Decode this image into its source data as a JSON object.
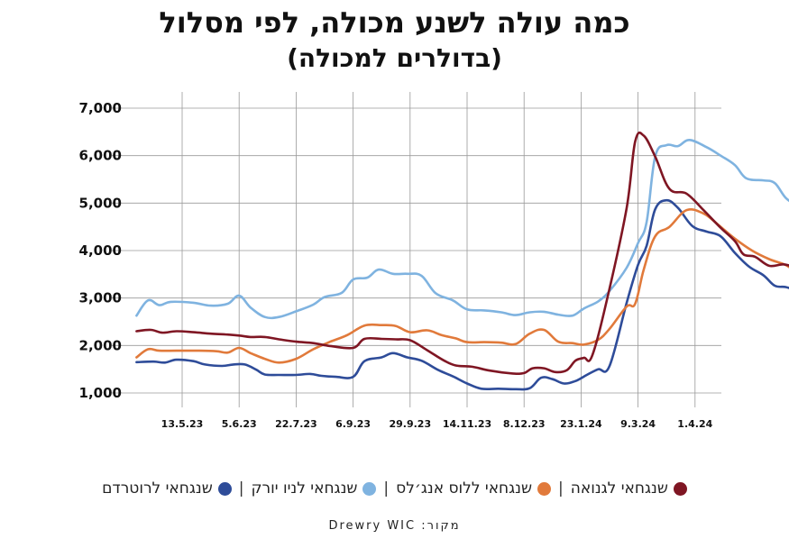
{
  "chart_data": {
    "type": "line",
    "title": "כמה עולה לשנע מכולה, לפי מסלול",
    "subtitle": "(בדולרים למכולה)",
    "x": [
      "13.5.23",
      "5.6.23",
      "22.7.23",
      "6.9.23",
      "29.9.23",
      "14.11.23",
      "8.12.23",
      "23.1.24",
      "9.3.24",
      "1.4.24"
    ],
    "y_ticks": [
      "1,000",
      "2,000",
      "3,000",
      "4,000",
      "5,000",
      "6,000",
      "7,000"
    ],
    "ylim": [
      1000,
      7000
    ],
    "grid": true,
    "legend_position": "bottom",
    "series": [
      {
        "name": "שנגחאי לגנואה",
        "color": "#7f1623",
        "values": [
          [
            -0.8,
            2300
          ],
          [
            -0.55,
            2330
          ],
          [
            -0.35,
            2270
          ],
          [
            -0.1,
            2300
          ],
          [
            0.2,
            2280
          ],
          [
            0.5,
            2250
          ],
          [
            0.8,
            2230
          ],
          [
            1.0,
            2210
          ],
          [
            1.2,
            2180
          ],
          [
            1.45,
            2180
          ],
          [
            1.7,
            2130
          ],
          [
            2.0,
            2080
          ],
          [
            2.3,
            2050
          ],
          [
            2.6,
            1990
          ],
          [
            3.0,
            1950
          ],
          [
            3.2,
            2140
          ],
          [
            3.5,
            2140
          ],
          [
            3.75,
            2130
          ],
          [
            4.0,
            2110
          ],
          [
            4.3,
            1900
          ],
          [
            4.6,
            1680
          ],
          [
            4.8,
            1580
          ],
          [
            5.1,
            1550
          ],
          [
            5.4,
            1470
          ],
          [
            5.8,
            1410
          ],
          [
            6.0,
            1420
          ],
          [
            6.15,
            1520
          ],
          [
            6.35,
            1520
          ],
          [
            6.55,
            1440
          ],
          [
            6.75,
            1480
          ],
          [
            6.9,
            1680
          ],
          [
            7.05,
            1740
          ],
          [
            7.2,
            1800
          ],
          [
            7.5,
            3200
          ],
          [
            7.8,
            4900
          ],
          [
            7.95,
            6300
          ],
          [
            8.1,
            6420
          ],
          [
            8.3,
            5980
          ],
          [
            8.55,
            5300
          ],
          [
            8.85,
            5200
          ],
          [
            9.15,
            4850
          ],
          [
            9.45,
            4480
          ],
          [
            9.7,
            4200
          ],
          [
            9.85,
            3920
          ],
          [
            10.05,
            3870
          ],
          [
            10.3,
            3680
          ],
          [
            10.55,
            3710
          ],
          [
            10.75,
            3650
          ]
        ]
      },
      {
        "name": "שנגחאי ללוס אנג'לס",
        "color": "#e17a3b",
        "values": [
          [
            -0.8,
            1750
          ],
          [
            -0.6,
            1920
          ],
          [
            -0.4,
            1890
          ],
          [
            -0.1,
            1890
          ],
          [
            0.3,
            1890
          ],
          [
            0.6,
            1880
          ],
          [
            0.8,
            1850
          ],
          [
            1.0,
            1950
          ],
          [
            1.2,
            1840
          ],
          [
            1.45,
            1720
          ],
          [
            1.7,
            1640
          ],
          [
            2.0,
            1720
          ],
          [
            2.3,
            1920
          ],
          [
            2.6,
            2080
          ],
          [
            2.9,
            2220
          ],
          [
            3.2,
            2420
          ],
          [
            3.5,
            2430
          ],
          [
            3.75,
            2410
          ],
          [
            4.0,
            2280
          ],
          [
            4.3,
            2320
          ],
          [
            4.55,
            2220
          ],
          [
            4.8,
            2150
          ],
          [
            5.0,
            2070
          ],
          [
            5.3,
            2070
          ],
          [
            5.6,
            2060
          ],
          [
            5.85,
            2030
          ],
          [
            6.1,
            2250
          ],
          [
            6.35,
            2330
          ],
          [
            6.6,
            2080
          ],
          [
            6.85,
            2050
          ],
          [
            7.05,
            2020
          ],
          [
            7.3,
            2120
          ],
          [
            7.5,
            2350
          ],
          [
            7.8,
            2820
          ],
          [
            7.95,
            2880
          ],
          [
            8.1,
            3600
          ],
          [
            8.3,
            4300
          ],
          [
            8.55,
            4500
          ],
          [
            8.85,
            4850
          ],
          [
            9.15,
            4780
          ],
          [
            9.4,
            4550
          ],
          [
            9.7,
            4250
          ],
          [
            10.0,
            4000
          ],
          [
            10.3,
            3820
          ],
          [
            10.6,
            3690
          ],
          [
            10.75,
            3550
          ]
        ]
      },
      {
        "name": "שנגחאי לניו יורק",
        "color": "#7fb3e0",
        "values": [
          [
            -0.8,
            2630
          ],
          [
            -0.6,
            2950
          ],
          [
            -0.4,
            2850
          ],
          [
            -0.2,
            2920
          ],
          [
            0.2,
            2900
          ],
          [
            0.5,
            2840
          ],
          [
            0.8,
            2880
          ],
          [
            1.0,
            3050
          ],
          [
            1.2,
            2800
          ],
          [
            1.45,
            2600
          ],
          [
            1.7,
            2600
          ],
          [
            2.0,
            2720
          ],
          [
            2.3,
            2860
          ],
          [
            2.5,
            3020
          ],
          [
            2.8,
            3110
          ],
          [
            3.0,
            3390
          ],
          [
            3.25,
            3430
          ],
          [
            3.45,
            3600
          ],
          [
            3.7,
            3510
          ],
          [
            3.95,
            3510
          ],
          [
            4.2,
            3470
          ],
          [
            4.45,
            3100
          ],
          [
            4.75,
            2950
          ],
          [
            5.0,
            2760
          ],
          [
            5.3,
            2740
          ],
          [
            5.6,
            2700
          ],
          [
            5.85,
            2640
          ],
          [
            6.1,
            2700
          ],
          [
            6.35,
            2710
          ],
          [
            6.6,
            2650
          ],
          [
            6.85,
            2630
          ],
          [
            7.05,
            2780
          ],
          [
            7.3,
            2930
          ],
          [
            7.5,
            3150
          ],
          [
            7.8,
            3640
          ],
          [
            8.0,
            4160
          ],
          [
            8.15,
            4600
          ],
          [
            8.3,
            5980
          ],
          [
            8.5,
            6220
          ],
          [
            8.7,
            6200
          ],
          [
            8.9,
            6330
          ],
          [
            9.2,
            6180
          ],
          [
            9.45,
            6000
          ],
          [
            9.7,
            5800
          ],
          [
            9.9,
            5520
          ],
          [
            10.2,
            5480
          ],
          [
            10.4,
            5420
          ],
          [
            10.6,
            5100
          ],
          [
            10.85,
            4900
          ],
          [
            11.05,
            4720
          ],
          [
            11.25,
            4500
          ]
        ]
      },
      {
        "name": "שנגחאי לרוטרדם",
        "color": "#2e4c99",
        "values": [
          [
            -0.8,
            1650
          ],
          [
            -0.5,
            1660
          ],
          [
            -0.3,
            1640
          ],
          [
            -0.1,
            1700
          ],
          [
            0.2,
            1670
          ],
          [
            0.4,
            1600
          ],
          [
            0.7,
            1570
          ],
          [
            0.9,
            1600
          ],
          [
            1.1,
            1600
          ],
          [
            1.3,
            1490
          ],
          [
            1.45,
            1390
          ],
          [
            1.7,
            1380
          ],
          [
            2.0,
            1380
          ],
          [
            2.25,
            1400
          ],
          [
            2.45,
            1360
          ],
          [
            2.7,
            1340
          ],
          [
            3.0,
            1340
          ],
          [
            3.2,
            1670
          ],
          [
            3.5,
            1750
          ],
          [
            3.7,
            1840
          ],
          [
            3.95,
            1750
          ],
          [
            4.2,
            1680
          ],
          [
            4.5,
            1480
          ],
          [
            4.75,
            1350
          ],
          [
            5.0,
            1200
          ],
          [
            5.25,
            1090
          ],
          [
            5.55,
            1090
          ],
          [
            5.85,
            1080
          ],
          [
            6.1,
            1100
          ],
          [
            6.3,
            1320
          ],
          [
            6.5,
            1290
          ],
          [
            6.7,
            1200
          ],
          [
            6.9,
            1250
          ],
          [
            7.1,
            1380
          ],
          [
            7.3,
            1500
          ],
          [
            7.5,
            1570
          ],
          [
            7.8,
            2900
          ],
          [
            8.0,
            3700
          ],
          [
            8.15,
            4100
          ],
          [
            8.3,
            4870
          ],
          [
            8.5,
            5060
          ],
          [
            8.7,
            4900
          ],
          [
            8.95,
            4520
          ],
          [
            9.2,
            4400
          ],
          [
            9.45,
            4300
          ],
          [
            9.7,
            3950
          ],
          [
            9.95,
            3660
          ],
          [
            10.2,
            3480
          ],
          [
            10.4,
            3260
          ],
          [
            10.6,
            3230
          ],
          [
            10.8,
            3150
          ],
          [
            11.05,
            3100
          ],
          [
            11.25,
            3050
          ]
        ]
      }
    ]
  },
  "legend": {
    "separator": "|",
    "items": [
      {
        "label": "שנגחאי לגנואה",
        "color": "#7f1623"
      },
      {
        "label": "שנגחאי ללוס אנג׳לס",
        "color": "#e17a3b"
      },
      {
        "label": "שנגחאי לניו יורק",
        "color": "#7fb3e0"
      },
      {
        "label": "שנגחאי לרוטרדם",
        "color": "#2e4c99"
      }
    ]
  },
  "source": {
    "text": "מקור: Drewry WIC"
  }
}
